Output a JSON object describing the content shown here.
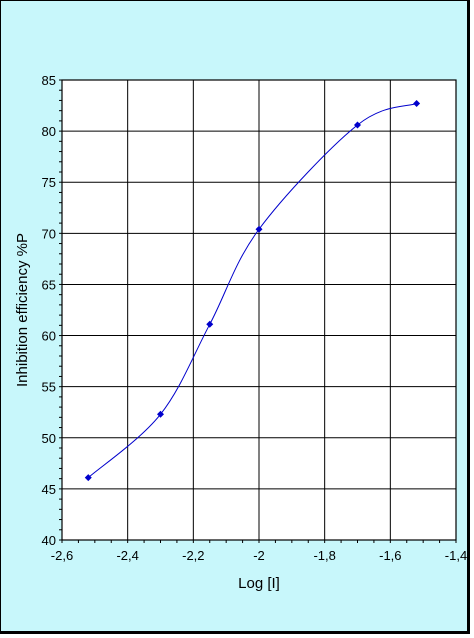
{
  "chart_data": {
    "type": "line",
    "xlabel": "Log [I]",
    "ylabel": "Inhibition efficiency %P",
    "xlim": [
      -2.6,
      -1.4
    ],
    "ylim": [
      40,
      85
    ],
    "grid": true,
    "xticks": [
      -2.6,
      -2.4,
      -2.2,
      -2.0,
      -1.8,
      -1.6,
      -1.4
    ],
    "xtick_labels": [
      "-2,6",
      "-2,4",
      "-2,2",
      "-2",
      "-1,8",
      "-1,6",
      "-1,4"
    ],
    "yticks": [
      40,
      45,
      50,
      55,
      60,
      65,
      70,
      75,
      80,
      85
    ],
    "ytick_labels": [
      "40",
      "45",
      "50",
      "55",
      "60",
      "65",
      "70",
      "75",
      "80",
      "85"
    ],
    "series": [
      {
        "color": "#0000cc",
        "marker": "diamond",
        "x": [
          -2.52,
          -2.3,
          -2.15,
          -2.0,
          -1.7,
          -1.52
        ],
        "y": [
          46.1,
          52.3,
          61.1,
          70.4,
          80.6,
          82.7
        ]
      }
    ]
  }
}
